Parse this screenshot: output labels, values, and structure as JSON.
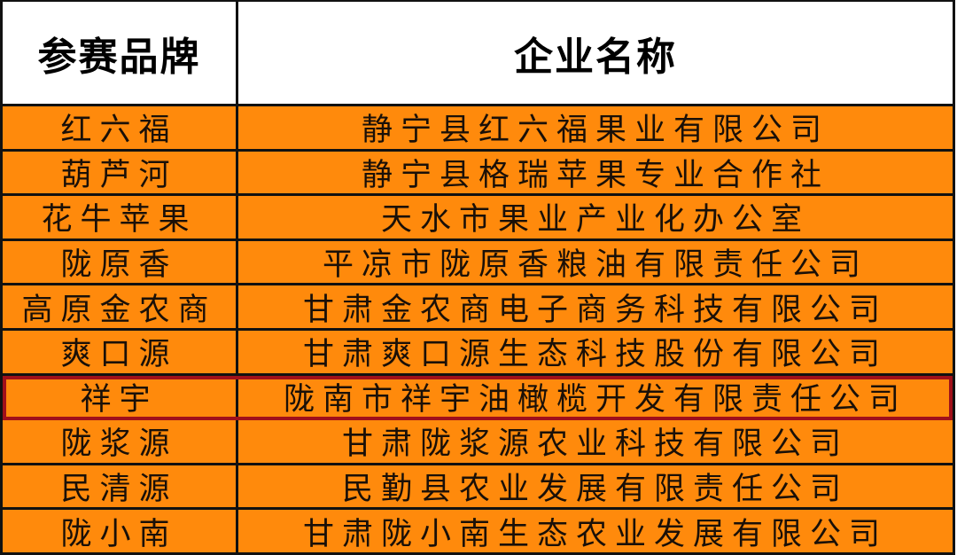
{
  "table": {
    "headers": {
      "brand": "参赛品牌",
      "company": "企业名称"
    },
    "rows": [
      {
        "brand": "红六福",
        "company": "静宁县红六福果业有限公司"
      },
      {
        "brand": "葫芦河",
        "company": "静宁县格瑞苹果专业合作社"
      },
      {
        "brand": "花牛苹果",
        "company": "天水市果业产业化办公室"
      },
      {
        "brand": "陇原香",
        "company": "平凉市陇原香粮油有限责任公司"
      },
      {
        "brand": "高原金农商",
        "company": "甘肃金农商电子商务科技有限公司"
      },
      {
        "brand": "爽口源",
        "company": "甘肃爽口源生态科技股份有限公司"
      },
      {
        "brand": "祥宇",
        "company": "陇南市祥宇油橄榄开发有限责任公司",
        "highlighted": true
      },
      {
        "brand": "陇浆源",
        "company": "甘肃陇浆源农业科技有限公司"
      },
      {
        "brand": "民清源",
        "company": "民勤县农业发展有限责任公司"
      },
      {
        "brand": "陇小南",
        "company": "甘肃陇小南生态农业发展有限公司"
      }
    ],
    "colors": {
      "row_fill": "#FF8A0C",
      "highlight_border": "#A0101A",
      "grid": "#111111"
    }
  }
}
